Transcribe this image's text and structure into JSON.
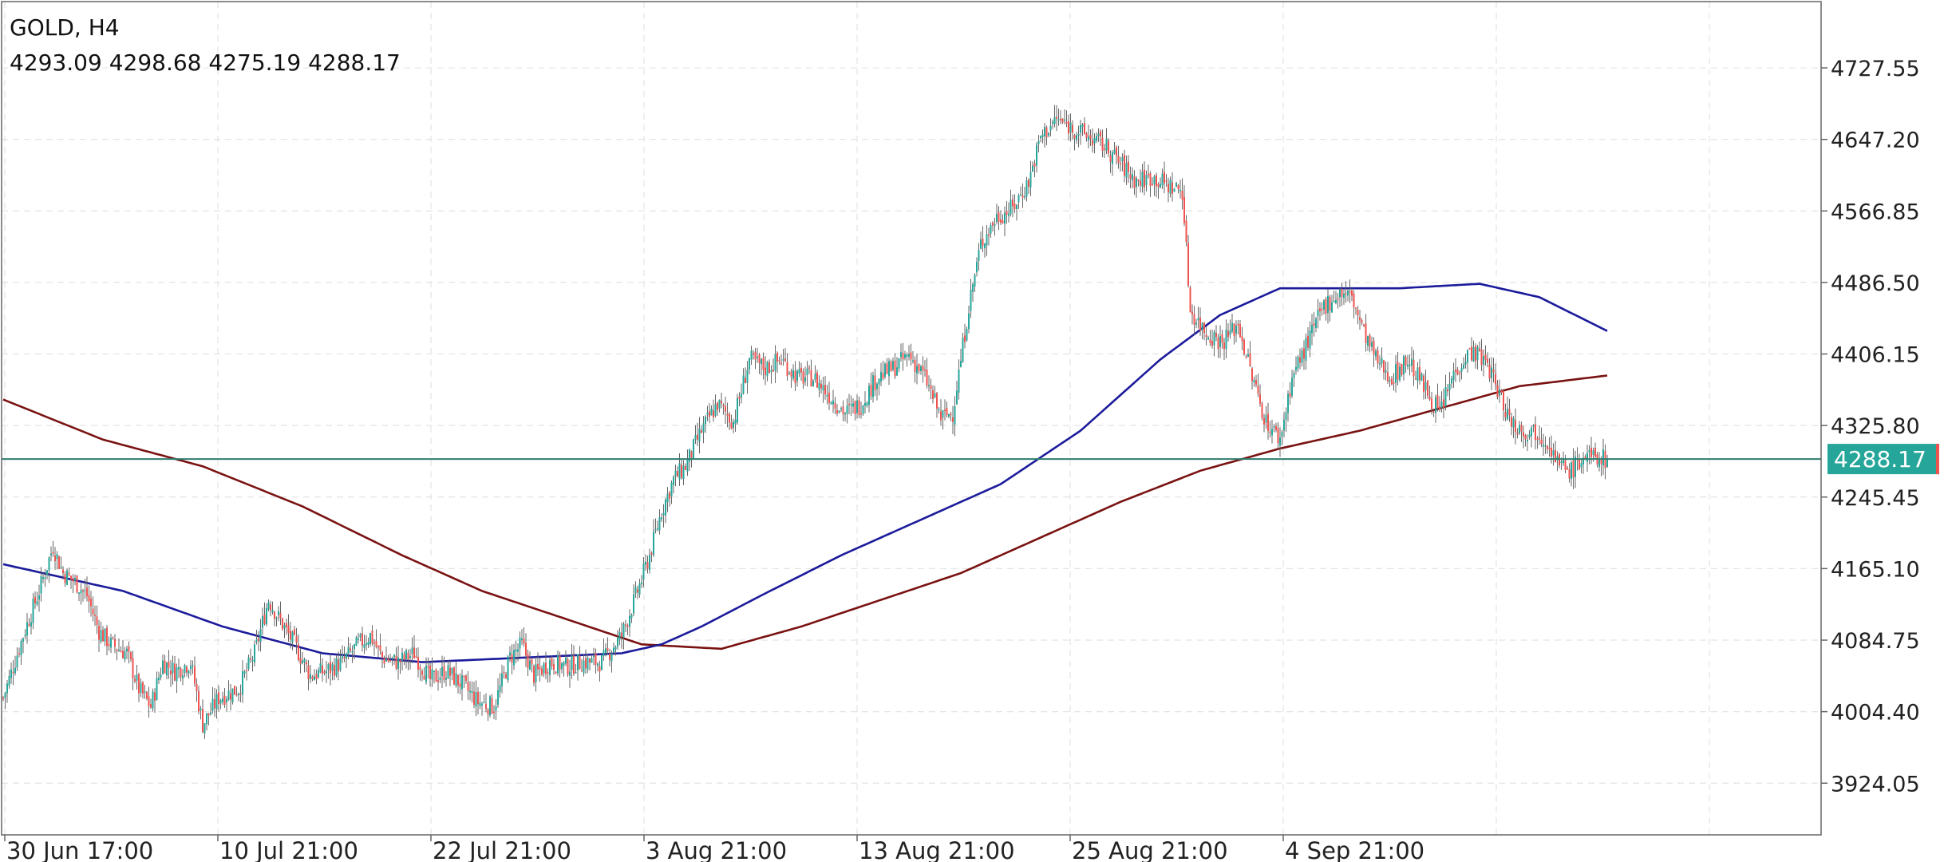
{
  "header": {
    "symbol_timeframe": "GOLD, H4",
    "ohlc": "4293.09 4298.68 4275.19 4288.17"
  },
  "chart_data": {
    "type": "candlestick",
    "y_ticks": [
      "4727.55",
      "4647.20",
      "4566.85",
      "4486.50",
      "4406.15",
      "4325.80",
      "4245.45",
      "4165.10",
      "4084.75",
      "4004.40",
      "3924.05"
    ],
    "x_ticks": [
      "30 Jun 17:00",
      "10 Jul 21:00",
      "22 Jul 21:00",
      "3 Aug 21:00",
      "13 Aug 21:00",
      "25 Aug 21:00",
      "4 Sep 21:00"
    ],
    "ylim": [
      3866,
      4802
    ],
    "last_price": 4288.17,
    "last_price_label": "4288.17",
    "grid": true,
    "colors": {
      "bull": "#26a69a",
      "bear": "#ef5350",
      "wick": "#666666",
      "fast_ma": "#1b1b9c",
      "slow_ma": "#7a1212",
      "price_line": "#2e7d6e",
      "price_tag": "#26a69a",
      "grid": "#e4e4e4",
      "axis": "#666666"
    },
    "close_path": [
      [
        0,
        4020
      ],
      [
        10,
        4090
      ],
      [
        18,
        4140
      ],
      [
        25,
        4190
      ],
      [
        30,
        4160
      ],
      [
        36,
        4150
      ],
      [
        42,
        4135
      ],
      [
        48,
        4095
      ],
      [
        54,
        4080
      ],
      [
        62,
        4070
      ],
      [
        68,
        4030
      ],
      [
        74,
        4010
      ],
      [
        80,
        4060
      ],
      [
        86,
        4050
      ],
      [
        94,
        4060
      ],
      [
        100,
        3990
      ],
      [
        108,
        4020
      ],
      [
        118,
        4030
      ],
      [
        126,
        4070
      ],
      [
        133,
        4130
      ],
      [
        138,
        4110
      ],
      [
        146,
        4080
      ],
      [
        154,
        4045
      ],
      [
        162,
        4050
      ],
      [
        170,
        4060
      ],
      [
        178,
        4080
      ],
      [
        184,
        4090
      ],
      [
        190,
        4065
      ],
      [
        198,
        4060
      ],
      [
        206,
        4070
      ],
      [
        214,
        4040
      ],
      [
        222,
        4050
      ],
      [
        230,
        4035
      ],
      [
        238,
        4015
      ],
      [
        246,
        4010
      ],
      [
        254,
        4065
      ],
      [
        260,
        4080
      ],
      [
        266,
        4045
      ],
      [
        274,
        4060
      ],
      [
        282,
        4055
      ],
      [
        290,
        4060
      ],
      [
        300,
        4060
      ],
      [
        310,
        4090
      ],
      [
        318,
        4140
      ],
      [
        324,
        4180
      ],
      [
        330,
        4230
      ],
      [
        336,
        4265
      ],
      [
        342,
        4280
      ],
      [
        350,
        4320
      ],
      [
        358,
        4350
      ],
      [
        366,
        4330
      ],
      [
        374,
        4400
      ],
      [
        382,
        4390
      ],
      [
        390,
        4400
      ],
      [
        398,
        4380
      ],
      [
        406,
        4380
      ],
      [
        414,
        4360
      ],
      [
        422,
        4340
      ],
      [
        430,
        4350
      ],
      [
        438,
        4380
      ],
      [
        446,
        4390
      ],
      [
        454,
        4405
      ],
      [
        462,
        4380
      ],
      [
        470,
        4335
      ],
      [
        476,
        4340
      ],
      [
        484,
        4460
      ],
      [
        490,
        4530
      ],
      [
        498,
        4560
      ],
      [
        506,
        4570
      ],
      [
        514,
        4600
      ],
      [
        520,
        4650
      ],
      [
        528,
        4670
      ],
      [
        536,
        4660
      ],
      [
        544,
        4650
      ],
      [
        552,
        4640
      ],
      [
        560,
        4620
      ],
      [
        568,
        4600
      ],
      [
        576,
        4605
      ],
      [
        584,
        4595
      ],
      [
        591,
        4590
      ],
      [
        595,
        4455
      ],
      [
        603,
        4430
      ],
      [
        611,
        4420
      ],
      [
        619,
        4440
      ],
      [
        626,
        4380
      ],
      [
        633,
        4330
      ],
      [
        640,
        4310
      ],
      [
        646,
        4380
      ],
      [
        654,
        4420
      ],
      [
        662,
        4460
      ],
      [
        670,
        4475
      ],
      [
        676,
        4470
      ],
      [
        682,
        4430
      ],
      [
        688,
        4400
      ],
      [
        696,
        4380
      ],
      [
        704,
        4400
      ],
      [
        712,
        4370
      ],
      [
        720,
        4340
      ],
      [
        728,
        4390
      ],
      [
        736,
        4410
      ],
      [
        744,
        4395
      ],
      [
        750,
        4360
      ],
      [
        756,
        4330
      ],
      [
        762,
        4320
      ],
      [
        768,
        4320
      ],
      [
        774,
        4310
      ],
      [
        780,
        4280
      ],
      [
        786,
        4275
      ],
      [
        792,
        4290
      ],
      [
        798,
        4290
      ],
      [
        804,
        4288.17
      ]
    ],
    "fast_ma": [
      [
        0,
        4170
      ],
      [
        60,
        4140
      ],
      [
        110,
        4100
      ],
      [
        160,
        4070
      ],
      [
        210,
        4060
      ],
      [
        260,
        4065
      ],
      [
        310,
        4070
      ],
      [
        330,
        4080
      ],
      [
        350,
        4100
      ],
      [
        380,
        4135
      ],
      [
        420,
        4180
      ],
      [
        460,
        4220
      ],
      [
        500,
        4260
      ],
      [
        540,
        4320
      ],
      [
        580,
        4400
      ],
      [
        610,
        4450
      ],
      [
        640,
        4480
      ],
      [
        700,
        4480
      ],
      [
        740,
        4485
      ],
      [
        770,
        4470
      ],
      [
        804,
        4432
      ]
    ],
    "slow_ma": [
      [
        0,
        4355
      ],
      [
        50,
        4310
      ],
      [
        100,
        4280
      ],
      [
        150,
        4235
      ],
      [
        200,
        4180
      ],
      [
        240,
        4140
      ],
      [
        280,
        4110
      ],
      [
        320,
        4080
      ],
      [
        360,
        4075
      ],
      [
        400,
        4100
      ],
      [
        440,
        4130
      ],
      [
        480,
        4160
      ],
      [
        520,
        4200
      ],
      [
        560,
        4240
      ],
      [
        600,
        4275
      ],
      [
        640,
        4300
      ],
      [
        680,
        4320
      ],
      [
        720,
        4345
      ],
      [
        760,
        4370
      ],
      [
        804,
        4382
      ]
    ]
  }
}
